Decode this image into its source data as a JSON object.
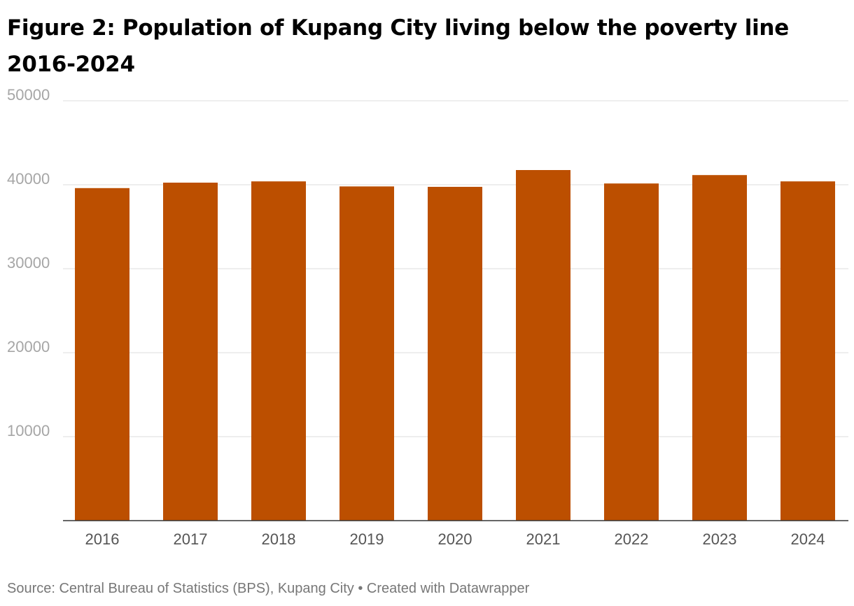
{
  "chart_data": {
    "type": "bar",
    "title": "Figure 2: Population of Kupang City living below the poverty line 2016-2024",
    "xlabel": "",
    "ylabel": "",
    "categories": [
      "2016",
      "2017",
      "2018",
      "2019",
      "2020",
      "2021",
      "2022",
      "2023",
      "2024"
    ],
    "values": [
      39600,
      40250,
      40400,
      39800,
      39750,
      41750,
      40150,
      41150,
      40400
    ],
    "ylim": [
      0,
      50000
    ],
    "yticks": [
      "50000",
      "40000",
      "30000",
      "20000",
      "10000"
    ],
    "ytick_values": [
      50000,
      40000,
      30000,
      20000,
      10000
    ],
    "grid": true,
    "legend": "none",
    "bar_color": "#bc4f00",
    "grid_color": "#e3e3e3",
    "axis_color": "#333333"
  },
  "footer": {
    "source": "Source: Central Bureau of Statistics (BPS), Kupang City • Created with Datawrapper"
  }
}
